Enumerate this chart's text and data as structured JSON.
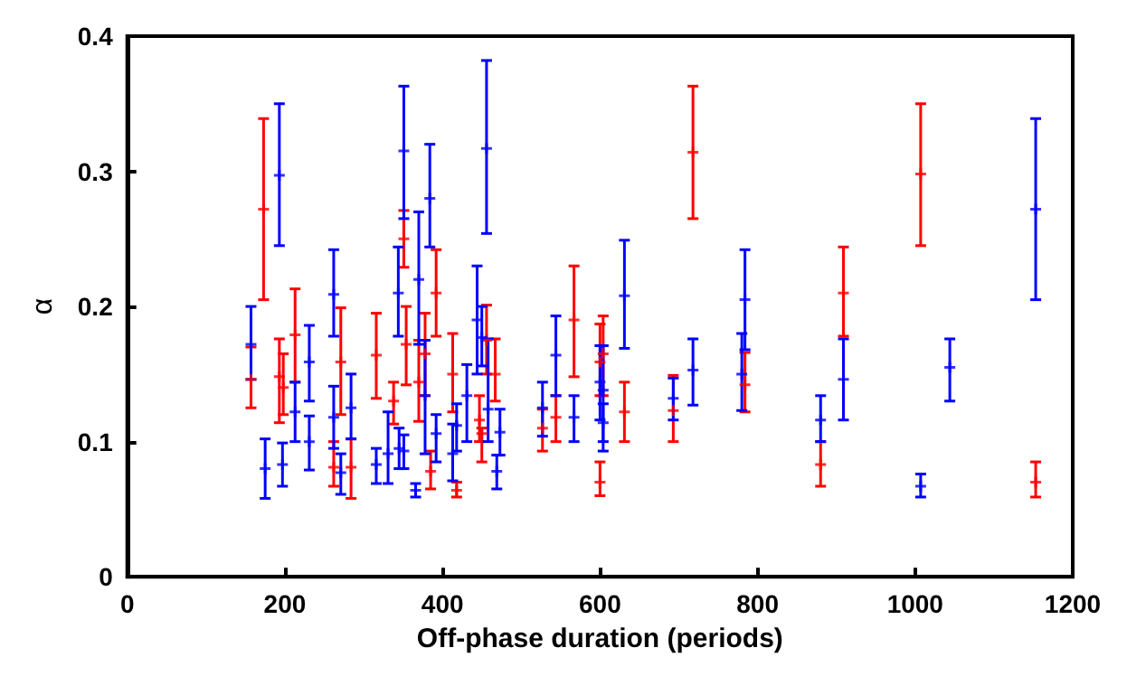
{
  "chart_data": {
    "type": "scatter",
    "xlabel": "Off-phase duration (periods)",
    "ylabel": "α",
    "xlim": [
      0,
      1200
    ],
    "xticks": [
      0,
      200,
      400,
      600,
      800,
      1000,
      1200
    ],
    "ylim": [
      0,
      0.4
    ],
    "yticks": [
      0,
      0.1,
      0.2,
      0.3,
      0.4
    ],
    "grid": false,
    "marker": "cross",
    "series": [
      {
        "color": "#ff0000",
        "x": [
          173,
          157,
          193,
          198,
          213,
          262,
          271,
          284,
          316,
          338,
          351,
          354,
          370,
          378,
          385,
          392,
          413,
          418,
          447,
          450,
          456,
          467,
          527,
          544,
          567,
          600,
          600,
          604,
          631,
          693,
          718,
          784,
          880,
          909,
          1007,
          1153
        ],
        "values": [
          0.272,
          0.146,
          0.148,
          0.14,
          0.179,
          0.081,
          0.159,
          0.081,
          0.164,
          0.13,
          0.25,
          0.172,
          0.144,
          0.165,
          0.078,
          0.21,
          0.15,
          0.064,
          0.116,
          0.106,
          0.175,
          0.15,
          0.11,
          0.118,
          0.19,
          0.159,
          0.07,
          0.165,
          0.122,
          0.123,
          0.314,
          0.142,
          0.083,
          0.21,
          0.298,
          0.07
        ],
        "errors": [
          [
            0.205,
            0.339
          ],
          [
            0.125,
            0.17
          ],
          [
            0.114,
            0.176
          ],
          [
            0.12,
            0.165
          ],
          [
            0.144,
            0.213
          ],
          [
            0.067,
            0.1
          ],
          [
            0.12,
            0.199
          ],
          [
            0.058,
            0.102
          ],
          [
            0.132,
            0.195
          ],
          [
            0.113,
            0.144
          ],
          [
            0.229,
            0.271
          ],
          [
            0.142,
            0.2
          ],
          [
            0.115,
            0.175
          ],
          [
            0.134,
            0.195
          ],
          [
            0.065,
            0.093
          ],
          [
            0.178,
            0.242
          ],
          [
            0.122,
            0.18
          ],
          [
            0.059,
            0.07
          ],
          [
            0.1,
            0.134
          ],
          [
            0.085,
            0.11
          ],
          [
            0.15,
            0.201
          ],
          [
            0.13,
            0.176
          ],
          [
            0.093,
            0.124
          ],
          [
            0.1,
            0.134
          ],
          [
            0.148,
            0.23
          ],
          [
            0.134,
            0.187
          ],
          [
            0.06,
            0.085
          ],
          [
            0.134,
            0.193
          ],
          [
            0.1,
            0.144
          ],
          [
            0.1,
            0.149
          ],
          [
            0.265,
            0.363
          ],
          [
            0.122,
            0.166
          ],
          [
            0.067,
            0.1
          ],
          [
            0.178,
            0.244
          ],
          [
            0.245,
            0.35
          ],
          [
            0.059,
            0.085
          ]
        ]
      },
      {
        "color": "#0000ff",
        "x": [
          193,
          157,
          175,
          197,
          213,
          231,
          231,
          262,
          262,
          271,
          284,
          316,
          331,
          344,
          345,
          351,
          351,
          366,
          370,
          378,
          384,
          392,
          413,
          418,
          431,
          444,
          450,
          456,
          458,
          469,
          473,
          527,
          544,
          567,
          600,
          604,
          604,
          631,
          693,
          718,
          780,
          784,
          880,
          909,
          1007,
          1044,
          1153
        ],
        "values": [
          0.297,
          0.172,
          0.08,
          0.083,
          0.122,
          0.159,
          0.1,
          0.209,
          0.118,
          0.077,
          0.125,
          0.083,
          0.091,
          0.21,
          0.095,
          0.315,
          0.093,
          0.064,
          0.22,
          0.134,
          0.28,
          0.106,
          0.091,
          0.112,
          0.134,
          0.19,
          0.177,
          0.317,
          0.124,
          0.078,
          0.107,
          0.125,
          0.164,
          0.118,
          0.144,
          0.138,
          0.114,
          0.208,
          0.132,
          0.153,
          0.15,
          0.205,
          0.116,
          0.146,
          0.067,
          0.155,
          0.272
        ],
        "errors": [
          [
            0.245,
            0.35
          ],
          [
            0.146,
            0.2
          ],
          [
            0.058,
            0.102
          ],
          [
            0.067,
            0.099
          ],
          [
            0.1,
            0.144
          ],
          [
            0.13,
            0.186
          ],
          [
            0.079,
            0.119
          ],
          [
            0.178,
            0.242
          ],
          [
            0.095,
            0.141
          ],
          [
            0.061,
            0.091
          ],
          [
            0.102,
            0.15
          ],
          [
            0.069,
            0.095
          ],
          [
            0.069,
            0.122
          ],
          [
            0.178,
            0.244
          ],
          [
            0.08,
            0.11
          ],
          [
            0.265,
            0.363
          ],
          [
            0.08,
            0.105
          ],
          [
            0.059,
            0.069
          ],
          [
            0.172,
            0.27
          ],
          [
            0.091,
            0.175
          ],
          [
            0.244,
            0.32
          ],
          [
            0.085,
            0.12
          ],
          [
            0.071,
            0.113
          ],
          [
            0.093,
            0.128
          ],
          [
            0.1,
            0.157
          ],
          [
            0.15,
            0.23
          ],
          [
            0.156,
            0.2
          ],
          [
            0.254,
            0.382
          ],
          [
            0.1,
            0.176
          ],
          [
            0.065,
            0.09
          ],
          [
            0.09,
            0.124
          ],
          [
            0.104,
            0.144
          ],
          [
            0.134,
            0.193
          ],
          [
            0.1,
            0.134
          ],
          [
            0.116,
            0.171
          ],
          [
            0.1,
            0.171
          ],
          [
            0.093,
            0.128
          ],
          [
            0.169,
            0.249
          ],
          [
            0.116,
            0.147
          ],
          [
            0.127,
            0.176
          ],
          [
            0.123,
            0.18
          ],
          [
            0.168,
            0.242
          ],
          [
            0.1,
            0.134
          ],
          [
            0.116,
            0.176
          ],
          [
            0.059,
            0.076
          ],
          [
            0.13,
            0.176
          ],
          [
            0.205,
            0.339
          ]
        ]
      }
    ]
  }
}
